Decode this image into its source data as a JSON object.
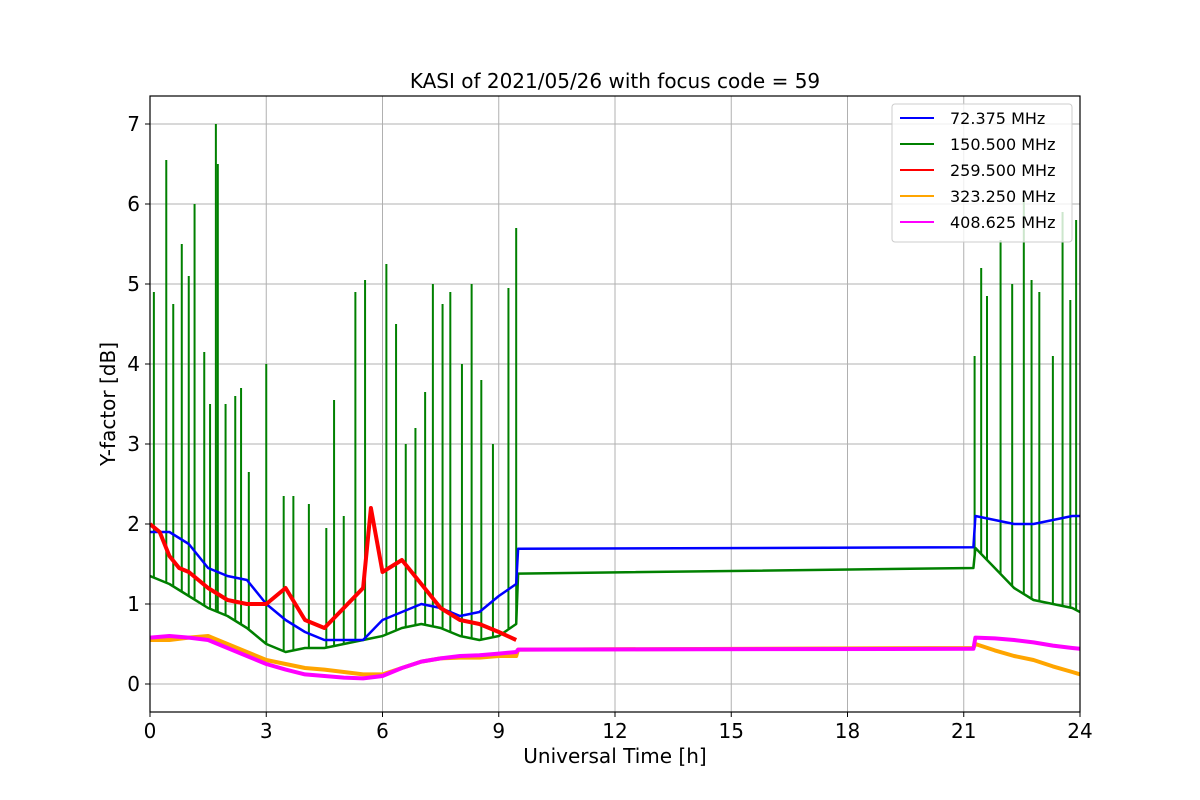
{
  "chart_data": {
    "type": "line",
    "title": "KASI of 2021/05/26 with focus code = 59",
    "xlabel": "Universal Time [h]",
    "ylabel": "Y-factor [dB]",
    "xlim": [
      0,
      24
    ],
    "ylim": [
      -0.35,
      7.35
    ],
    "xticks": [
      "0",
      "3",
      "6",
      "9",
      "12",
      "15",
      "18",
      "21",
      "24"
    ],
    "yticks": [
      "0",
      "1",
      "2",
      "3",
      "4",
      "5",
      "6",
      "7"
    ],
    "grid": true,
    "legend_position": "top-right",
    "series": [
      {
        "name": " 72.375 MHz",
        "color": "#0000ff",
        "x": [
          0.0,
          0.5,
          1.0,
          1.5,
          2.0,
          2.5,
          3.0,
          3.5,
          4.0,
          4.5,
          5.0,
          5.5,
          6.0,
          6.5,
          7.0,
          7.5,
          8.0,
          8.5,
          9.0,
          9.45,
          9.5,
          21.25,
          21.3,
          21.8,
          22.3,
          22.8,
          23.3,
          23.8,
          24.0
        ],
        "y": [
          1.9,
          1.9,
          1.75,
          1.45,
          1.35,
          1.3,
          1.0,
          0.8,
          0.65,
          0.55,
          0.55,
          0.55,
          0.8,
          0.9,
          1.0,
          0.95,
          0.85,
          0.9,
          1.1,
          1.25,
          1.69,
          1.71,
          2.1,
          2.05,
          2.0,
          2.0,
          2.05,
          2.1,
          2.1
        ]
      },
      {
        "name": "150.500 MHz",
        "color": "#008000",
        "x": [
          0.0,
          0.5,
          1.0,
          1.5,
          2.0,
          2.5,
          3.0,
          3.5,
          4.0,
          4.5,
          5.0,
          5.5,
          6.0,
          6.5,
          7.0,
          7.5,
          8.0,
          8.5,
          9.0,
          9.45,
          9.5,
          21.25,
          21.3,
          21.8,
          22.3,
          22.8,
          23.3,
          23.8,
          24.0
        ],
        "y": [
          1.35,
          1.25,
          1.1,
          0.95,
          0.85,
          0.7,
          0.5,
          0.4,
          0.45,
          0.45,
          0.5,
          0.55,
          0.6,
          0.7,
          0.75,
          0.7,
          0.6,
          0.55,
          0.6,
          0.75,
          1.38,
          1.45,
          1.7,
          1.45,
          1.2,
          1.05,
          1.0,
          0.95,
          0.9
        ]
      },
      {
        "name": "259.500 MHz",
        "color": "#ff0000",
        "x": [
          0.0,
          0.25,
          0.5,
          0.75,
          1.0,
          1.5,
          2.0,
          2.5,
          3.0,
          3.5,
          4.0,
          4.5,
          5.0,
          5.5,
          5.7,
          6.0,
          6.5,
          7.0,
          7.5,
          8.0,
          8.5,
          9.0,
          9.45
        ],
        "y": [
          2.0,
          1.9,
          1.6,
          1.45,
          1.4,
          1.2,
          1.05,
          1.0,
          1.0,
          1.2,
          0.8,
          0.7,
          0.95,
          1.2,
          2.2,
          1.4,
          1.55,
          1.25,
          0.95,
          0.8,
          0.75,
          0.65,
          0.55
        ]
      },
      {
        "name": "323.250 MHz",
        "color": "#ffa500",
        "x": [
          0.0,
          0.5,
          1.0,
          1.5,
          2.0,
          2.5,
          3.0,
          3.5,
          4.0,
          4.5,
          5.0,
          5.5,
          6.0,
          6.5,
          7.0,
          7.5,
          8.0,
          8.5,
          9.0,
          9.45,
          9.5,
          21.25,
          21.3,
          21.8,
          22.3,
          22.8,
          23.3,
          23.8,
          24.0
        ],
        "y": [
          0.55,
          0.55,
          0.58,
          0.6,
          0.5,
          0.4,
          0.3,
          0.25,
          0.2,
          0.18,
          0.15,
          0.12,
          0.12,
          0.2,
          0.28,
          0.32,
          0.33,
          0.33,
          0.35,
          0.35,
          0.43,
          0.45,
          0.5,
          0.42,
          0.35,
          0.3,
          0.22,
          0.15,
          0.12
        ]
      },
      {
        "name": "408.625 MHz",
        "color": "#ff00ff",
        "x": [
          0.0,
          0.5,
          1.0,
          1.5,
          2.0,
          2.5,
          3.0,
          3.5,
          4.0,
          4.5,
          5.0,
          5.5,
          6.0,
          6.5,
          7.0,
          7.5,
          8.0,
          8.5,
          9.0,
          9.45,
          9.5,
          21.25,
          21.3,
          21.8,
          22.3,
          22.8,
          23.3,
          23.8,
          24.0
        ],
        "y": [
          0.58,
          0.6,
          0.58,
          0.55,
          0.45,
          0.35,
          0.25,
          0.18,
          0.12,
          0.1,
          0.08,
          0.07,
          0.1,
          0.2,
          0.28,
          0.32,
          0.35,
          0.36,
          0.38,
          0.4,
          0.43,
          0.44,
          0.58,
          0.57,
          0.55,
          0.52,
          0.48,
          0.45,
          0.44
        ]
      }
    ],
    "spikes_150_500": {
      "x": [
        0.1,
        0.42,
        0.6,
        0.82,
        1.0,
        1.15,
        1.4,
        1.55,
        1.7,
        1.75,
        1.95,
        2.2,
        2.35,
        2.55,
        3.0,
        3.45,
        3.7,
        4.1,
        4.55,
        4.75,
        5.0,
        5.3,
        5.55,
        6.1,
        6.35,
        6.6,
        6.85,
        7.1,
        7.3,
        7.55,
        7.75,
        8.05,
        8.3,
        8.55,
        8.85,
        9.25,
        9.45,
        21.28,
        21.45,
        21.6,
        21.95,
        22.25,
        22.55,
        22.75,
        22.95,
        23.3,
        23.55,
        23.75,
        23.9
      ],
      "y": [
        4.9,
        6.55,
        4.75,
        5.5,
        5.1,
        6.0,
        4.15,
        3.5,
        7.0,
        6.5,
        3.5,
        3.6,
        3.7,
        2.65,
        4.0,
        2.35,
        2.35,
        2.25,
        1.95,
        3.55,
        2.1,
        4.9,
        5.05,
        5.25,
        4.5,
        3.0,
        3.2,
        3.65,
        5.0,
        4.75,
        4.9,
        4.0,
        5.0,
        3.8,
        3.0,
        4.95,
        5.7,
        4.1,
        5.2,
        4.85,
        5.55,
        5.0,
        6.1,
        5.05,
        4.9,
        4.1,
        5.9,
        4.8,
        5.8
      ]
    }
  }
}
